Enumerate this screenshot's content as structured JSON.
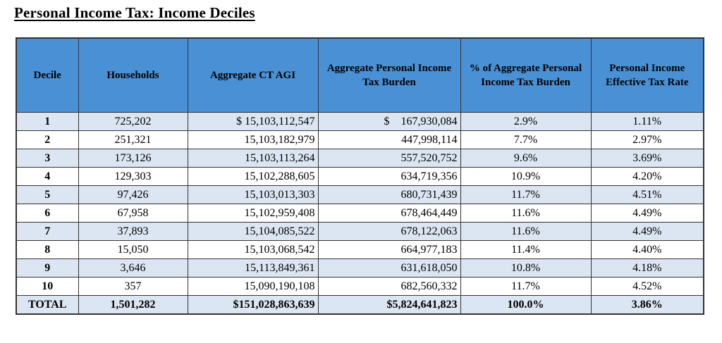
{
  "title": "Personal Income Tax: Income Deciles",
  "colors": {
    "header_bg": "#4a90d5",
    "row_alt_bg": "#dce6f2",
    "border": "#333333",
    "text": "#000000"
  },
  "table": {
    "columns": [
      "Decile",
      "Households",
      "Aggregate CT AGI",
      "Aggregate Personal Income Tax Burden",
      "% of Aggregate Personal Income Tax Burden",
      "Personal Income Effective Tax Rate"
    ],
    "rows": [
      {
        "decile": "1",
        "households": "725,202",
        "agi": "$ 15,103,112,547",
        "burden": "$    167,930,084",
        "pct": "2.9%",
        "rate": "1.11%",
        "shaded": true,
        "total": false
      },
      {
        "decile": "2",
        "households": "251,321",
        "agi": "15,103,182,979",
        "burden": "447,998,114",
        "pct": "7.7%",
        "rate": "2.97%",
        "shaded": false,
        "total": false
      },
      {
        "decile": "3",
        "households": "173,126",
        "agi": "15,103,113,264",
        "burden": "557,520,752",
        "pct": "9.6%",
        "rate": "3.69%",
        "shaded": true,
        "total": false
      },
      {
        "decile": "4",
        "households": "129,303",
        "agi": "15,102,288,605",
        "burden": "634,719,356",
        "pct": "10.9%",
        "rate": "4.20%",
        "shaded": false,
        "total": false
      },
      {
        "decile": "5",
        "households": "97,426",
        "agi": "15,103,013,303",
        "burden": "680,731,439",
        "pct": "11.7%",
        "rate": "4.51%",
        "shaded": true,
        "total": false
      },
      {
        "decile": "6",
        "households": "67,958",
        "agi": "15,102,959,408",
        "burden": "678,464,449",
        "pct": "11.6%",
        "rate": "4.49%",
        "shaded": false,
        "total": false
      },
      {
        "decile": "7",
        "households": "37,893",
        "agi": "15,104,085,522",
        "burden": "678,122,063",
        "pct": "11.6%",
        "rate": "4.49%",
        "shaded": true,
        "total": false
      },
      {
        "decile": "8",
        "households": "15,050",
        "agi": "15,103,068,542",
        "burden": "664,977,183",
        "pct": "11.4%",
        "rate": "4.40%",
        "shaded": false,
        "total": false
      },
      {
        "decile": "9",
        "households": "3,646",
        "agi": "15,113,849,361",
        "burden": "631,618,050",
        "pct": "10.8%",
        "rate": "4.18%",
        "shaded": true,
        "total": false
      },
      {
        "decile": "10",
        "households": "357",
        "agi": "15,090,190,108",
        "burden": "682,560,332",
        "pct": "11.7%",
        "rate": "4.52%",
        "shaded": false,
        "total": false
      },
      {
        "decile": "TOTAL",
        "households": "1,501,282",
        "agi": "$151,028,863,639",
        "burden": "$5,824,641,823",
        "pct": "100.0%",
        "rate": "3.86%",
        "shaded": true,
        "total": true
      }
    ]
  }
}
